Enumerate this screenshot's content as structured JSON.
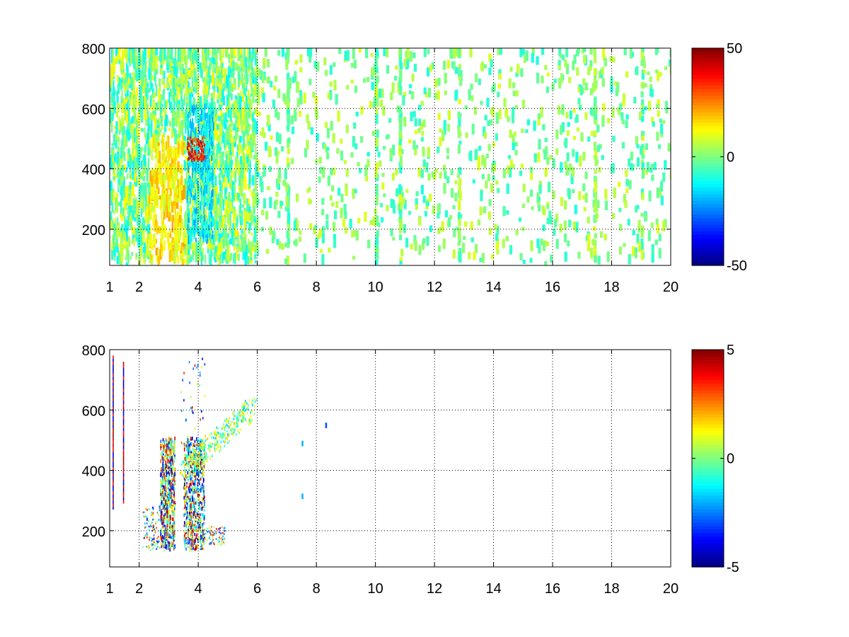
{
  "chart_data": [
    {
      "type": "heatmap",
      "title": "",
      "xlabel": "",
      "ylabel": "",
      "xlim": [
        1,
        20
      ],
      "ylim": [
        80,
        800
      ],
      "x_ticks": [
        1,
        2,
        4,
        6,
        8,
        10,
        12,
        14,
        16,
        18,
        20
      ],
      "y_ticks": [
        200,
        400,
        600,
        800
      ],
      "grid": true,
      "colormap": "jet",
      "colorbar": {
        "min": -50,
        "max": 50,
        "ticks": [
          50,
          0,
          -50
        ],
        "tick_labels": [
          "50",
          "0",
          "-50"
        ]
      },
      "value_pattern": {
        "background": "blank (NaN) cells",
        "dense_region_x": [
          1,
          6
        ],
        "warm_patch": {
          "x": [
            3.6,
            4.2
          ],
          "y": [
            420,
            500
          ],
          "approx_value": 35
        },
        "cool_band": {
          "x": [
            3.6,
            4.5
          ],
          "y": [
            150,
            600
          ],
          "approx_value": -15
        },
        "sparse_region_x": [
          6,
          20
        ],
        "sparse_typical_range": [
          -10,
          10
        ]
      }
    },
    {
      "type": "heatmap",
      "title": "",
      "xlabel": "",
      "ylabel": "",
      "xlim": [
        1,
        20
      ],
      "ylim": [
        80,
        800
      ],
      "x_ticks": [
        1,
        2,
        4,
        6,
        8,
        10,
        12,
        14,
        16,
        18,
        20
      ],
      "y_ticks": [
        200,
        400,
        600,
        800
      ],
      "grid": true,
      "colormap": "jet",
      "colorbar": {
        "min": -5,
        "max": 5,
        "ticks": [
          5,
          0,
          -5
        ],
        "tick_labels": [
          "5",
          "0",
          "-5"
        ]
      },
      "value_pattern": {
        "background": "blank (NaN) cells",
        "vertical_lines": [
          {
            "x": 1.1,
            "y": [
              270,
              780
            ]
          },
          {
            "x": 1.45,
            "y": [
              290,
              760
            ]
          }
        ],
        "cluster_a": {
          "x": [
            2.7,
            3.2
          ],
          "y": [
            130,
            500
          ],
          "range": [
            -5,
            5
          ]
        },
        "cluster_b": {
          "x": [
            3.5,
            4.2
          ],
          "y": [
            130,
            500
          ],
          "range": [
            -5,
            5
          ]
        },
        "diagonal_streak": {
          "from": [
            3.5,
            400
          ],
          "to": [
            5.8,
            600
          ],
          "approx_value": 0
        },
        "isolated_points": [
          {
            "x": 8.3,
            "y": 540,
            "approx_value": -3
          },
          {
            "x": 7.5,
            "y": 480,
            "approx_value": -2
          },
          {
            "x": 7.5,
            "y": 305,
            "approx_value": -2
          }
        ]
      }
    }
  ]
}
